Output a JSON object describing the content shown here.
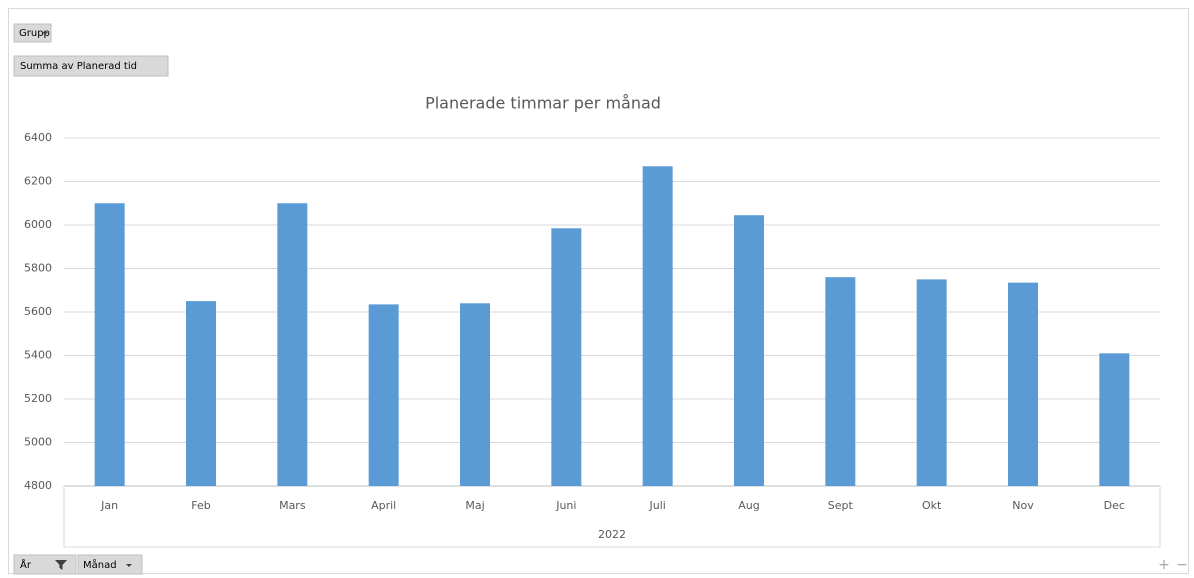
{
  "chart_data": {
    "type": "bar",
    "title": "Planerade timmar per månad",
    "categories": [
      "Jan",
      "Feb",
      "Mars",
      "April",
      "Maj",
      "Juni",
      "Juli",
      "Aug",
      "Sept",
      "Okt",
      "Nov",
      "Dec"
    ],
    "values": [
      6100,
      5650,
      6100,
      5635,
      5640,
      5985,
      6270,
      6045,
      5760,
      5750,
      5735,
      5410
    ],
    "color": "#5b9bd5",
    "ylim": [
      4800,
      6400
    ],
    "yticks": [
      4800,
      5000,
      5200,
      5400,
      5600,
      5800,
      6000,
      6200,
      6400
    ],
    "grid": true,
    "x_group_label": "2022",
    "field_buttons": {
      "legend": "Grupp",
      "values": "Summa av Planerad tid",
      "axis": [
        "År",
        "Månad"
      ]
    }
  }
}
